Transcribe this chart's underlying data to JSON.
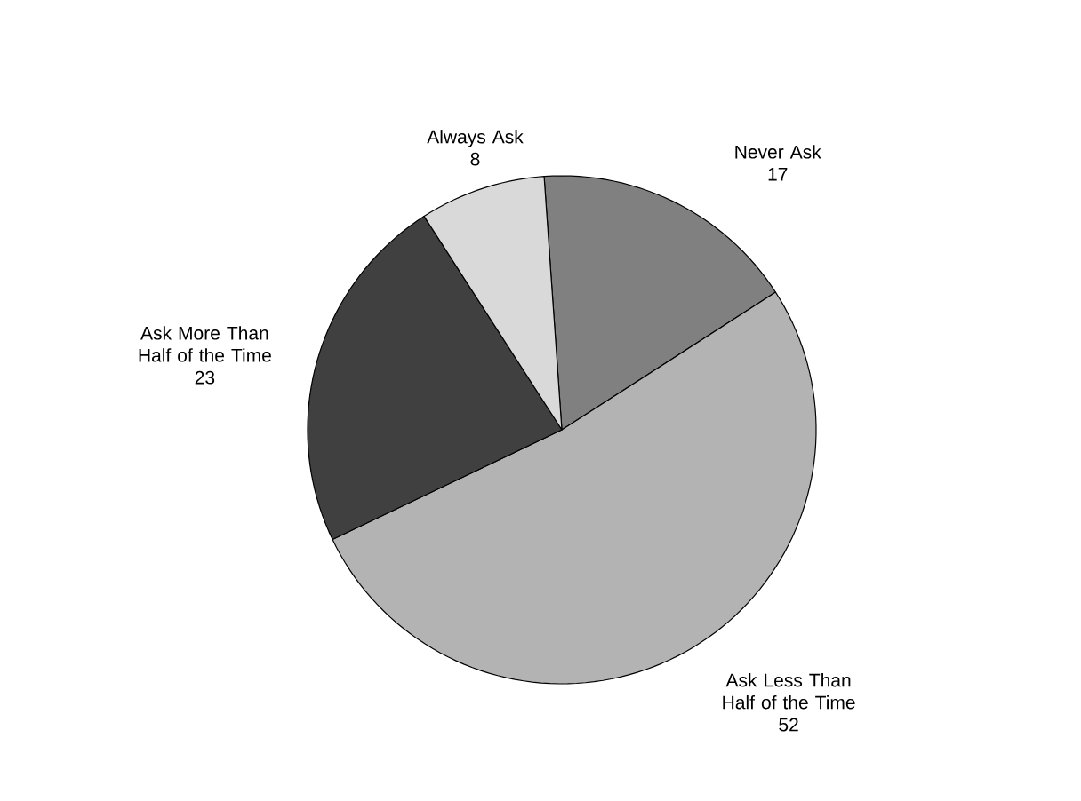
{
  "chart_data": {
    "type": "pie",
    "categories": [
      "Never Ask",
      "Ask Less Than Half of the Time",
      "Ask More Than Half of the Time",
      "Always Ask"
    ],
    "values": [
      17,
      52,
      23,
      8
    ],
    "colors": [
      "#808080",
      "#b3b3b3",
      "#404040",
      "#d9d9d9"
    ],
    "data_labels": true
  }
}
